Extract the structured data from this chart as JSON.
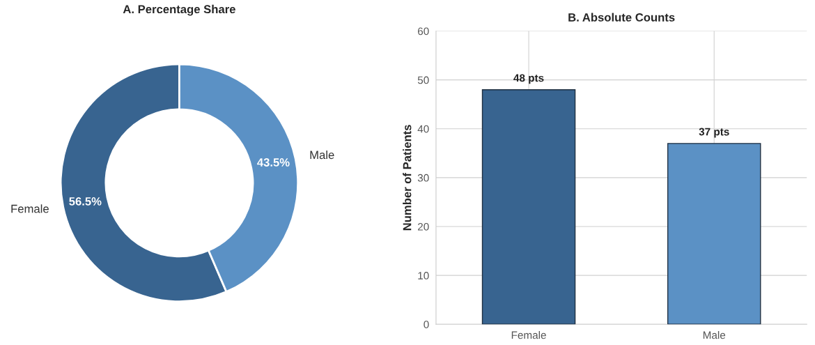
{
  "chart_data": [
    {
      "type": "donut",
      "title": "A. Percentage Share",
      "categories": [
        "Female",
        "Male"
      ],
      "values": [
        56.5,
        43.5
      ],
      "colors": [
        "#386490",
        "#5b91c5"
      ],
      "value_labels": [
        "56.5%",
        "43.5%"
      ]
    },
    {
      "type": "bar",
      "title": "B. Absolute Counts",
      "ylabel": "Number of Patients",
      "categories": [
        "Female",
        "Male"
      ],
      "values": [
        48,
        37
      ],
      "colors": [
        "#386490",
        "#5b91c5"
      ],
      "value_labels": [
        "48 pts",
        "37 pts"
      ],
      "ylim": [
        0,
        60
      ],
      "yticks": [
        0,
        10,
        20,
        30,
        40,
        50,
        60
      ],
      "grid": true
    }
  ]
}
